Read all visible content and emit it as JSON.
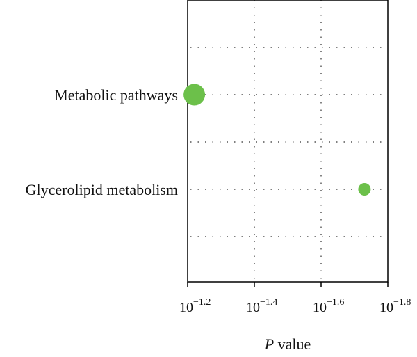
{
  "chart_data": {
    "type": "scatter",
    "title": "",
    "xlabel_italic": "P",
    "xlabel_rest": " value",
    "x_scale": "log",
    "xlim": [
      -1.2,
      -1.8
    ],
    "x_tick_base": "10",
    "x_ticks": [
      {
        "value": -1.2,
        "exponent": "−1.2"
      },
      {
        "value": -1.4,
        "exponent": "−1.4"
      },
      {
        "value": -1.6,
        "exponent": "−1.6"
      },
      {
        "value": -1.8,
        "exponent": "−1.8"
      }
    ],
    "categories": [
      "Metabolic pathways",
      "Glycerolipid metabolism"
    ],
    "points": [
      {
        "category": "Metabolic pathways",
        "x": -1.22,
        "size": 2
      },
      {
        "category": "Glycerolipid metabolism",
        "x": -1.73,
        "size": 1
      }
    ],
    "grid": true,
    "point_color": "#6cc04a"
  }
}
